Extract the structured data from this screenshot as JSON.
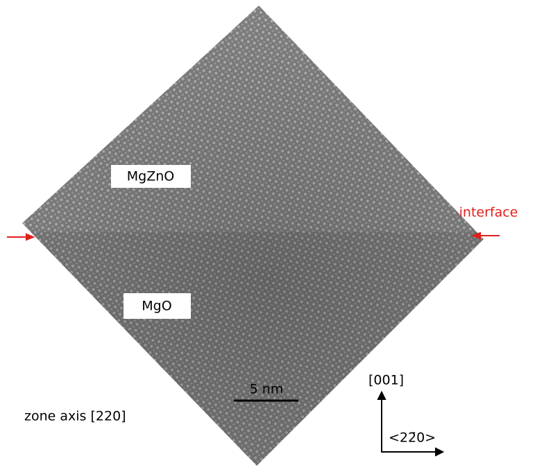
{
  "labels": {
    "upper_layer": "MgZnO",
    "lower_layer": "MgO",
    "interface": "interface",
    "scale_bar": "5 nm",
    "zone_axis": "zone axis [220]",
    "vertical_direction": "[001]",
    "horizontal_direction": "<22̄0>"
  }
}
